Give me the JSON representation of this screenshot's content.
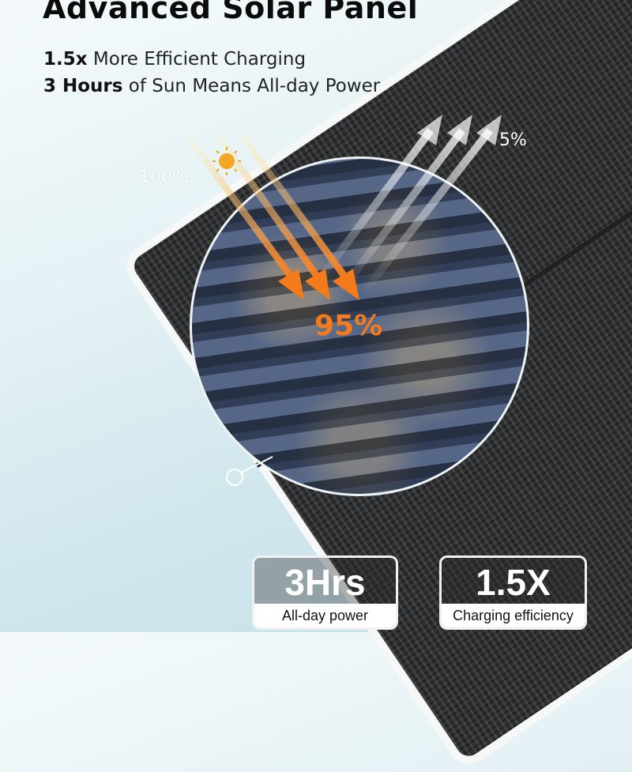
{
  "title": "Advanced Solar Panel",
  "subtitle_lines": [
    {
      "bold": "1.5x",
      "rest": " More Efficient Charging"
    },
    {
      "bold": "3 Hours",
      "rest": " of Sun Means All-day Power"
    }
  ],
  "diagram": {
    "incoming_label": "100%",
    "reflected_label": "5%",
    "absorbed_label": "95%"
  },
  "badges": [
    {
      "value": "3Hrs",
      "caption": "All-day power"
    },
    {
      "value": "1.5X",
      "caption": "Charging efficiency"
    }
  ],
  "colors": {
    "accent": "#f47a1c",
    "sun": "#f5a623"
  }
}
